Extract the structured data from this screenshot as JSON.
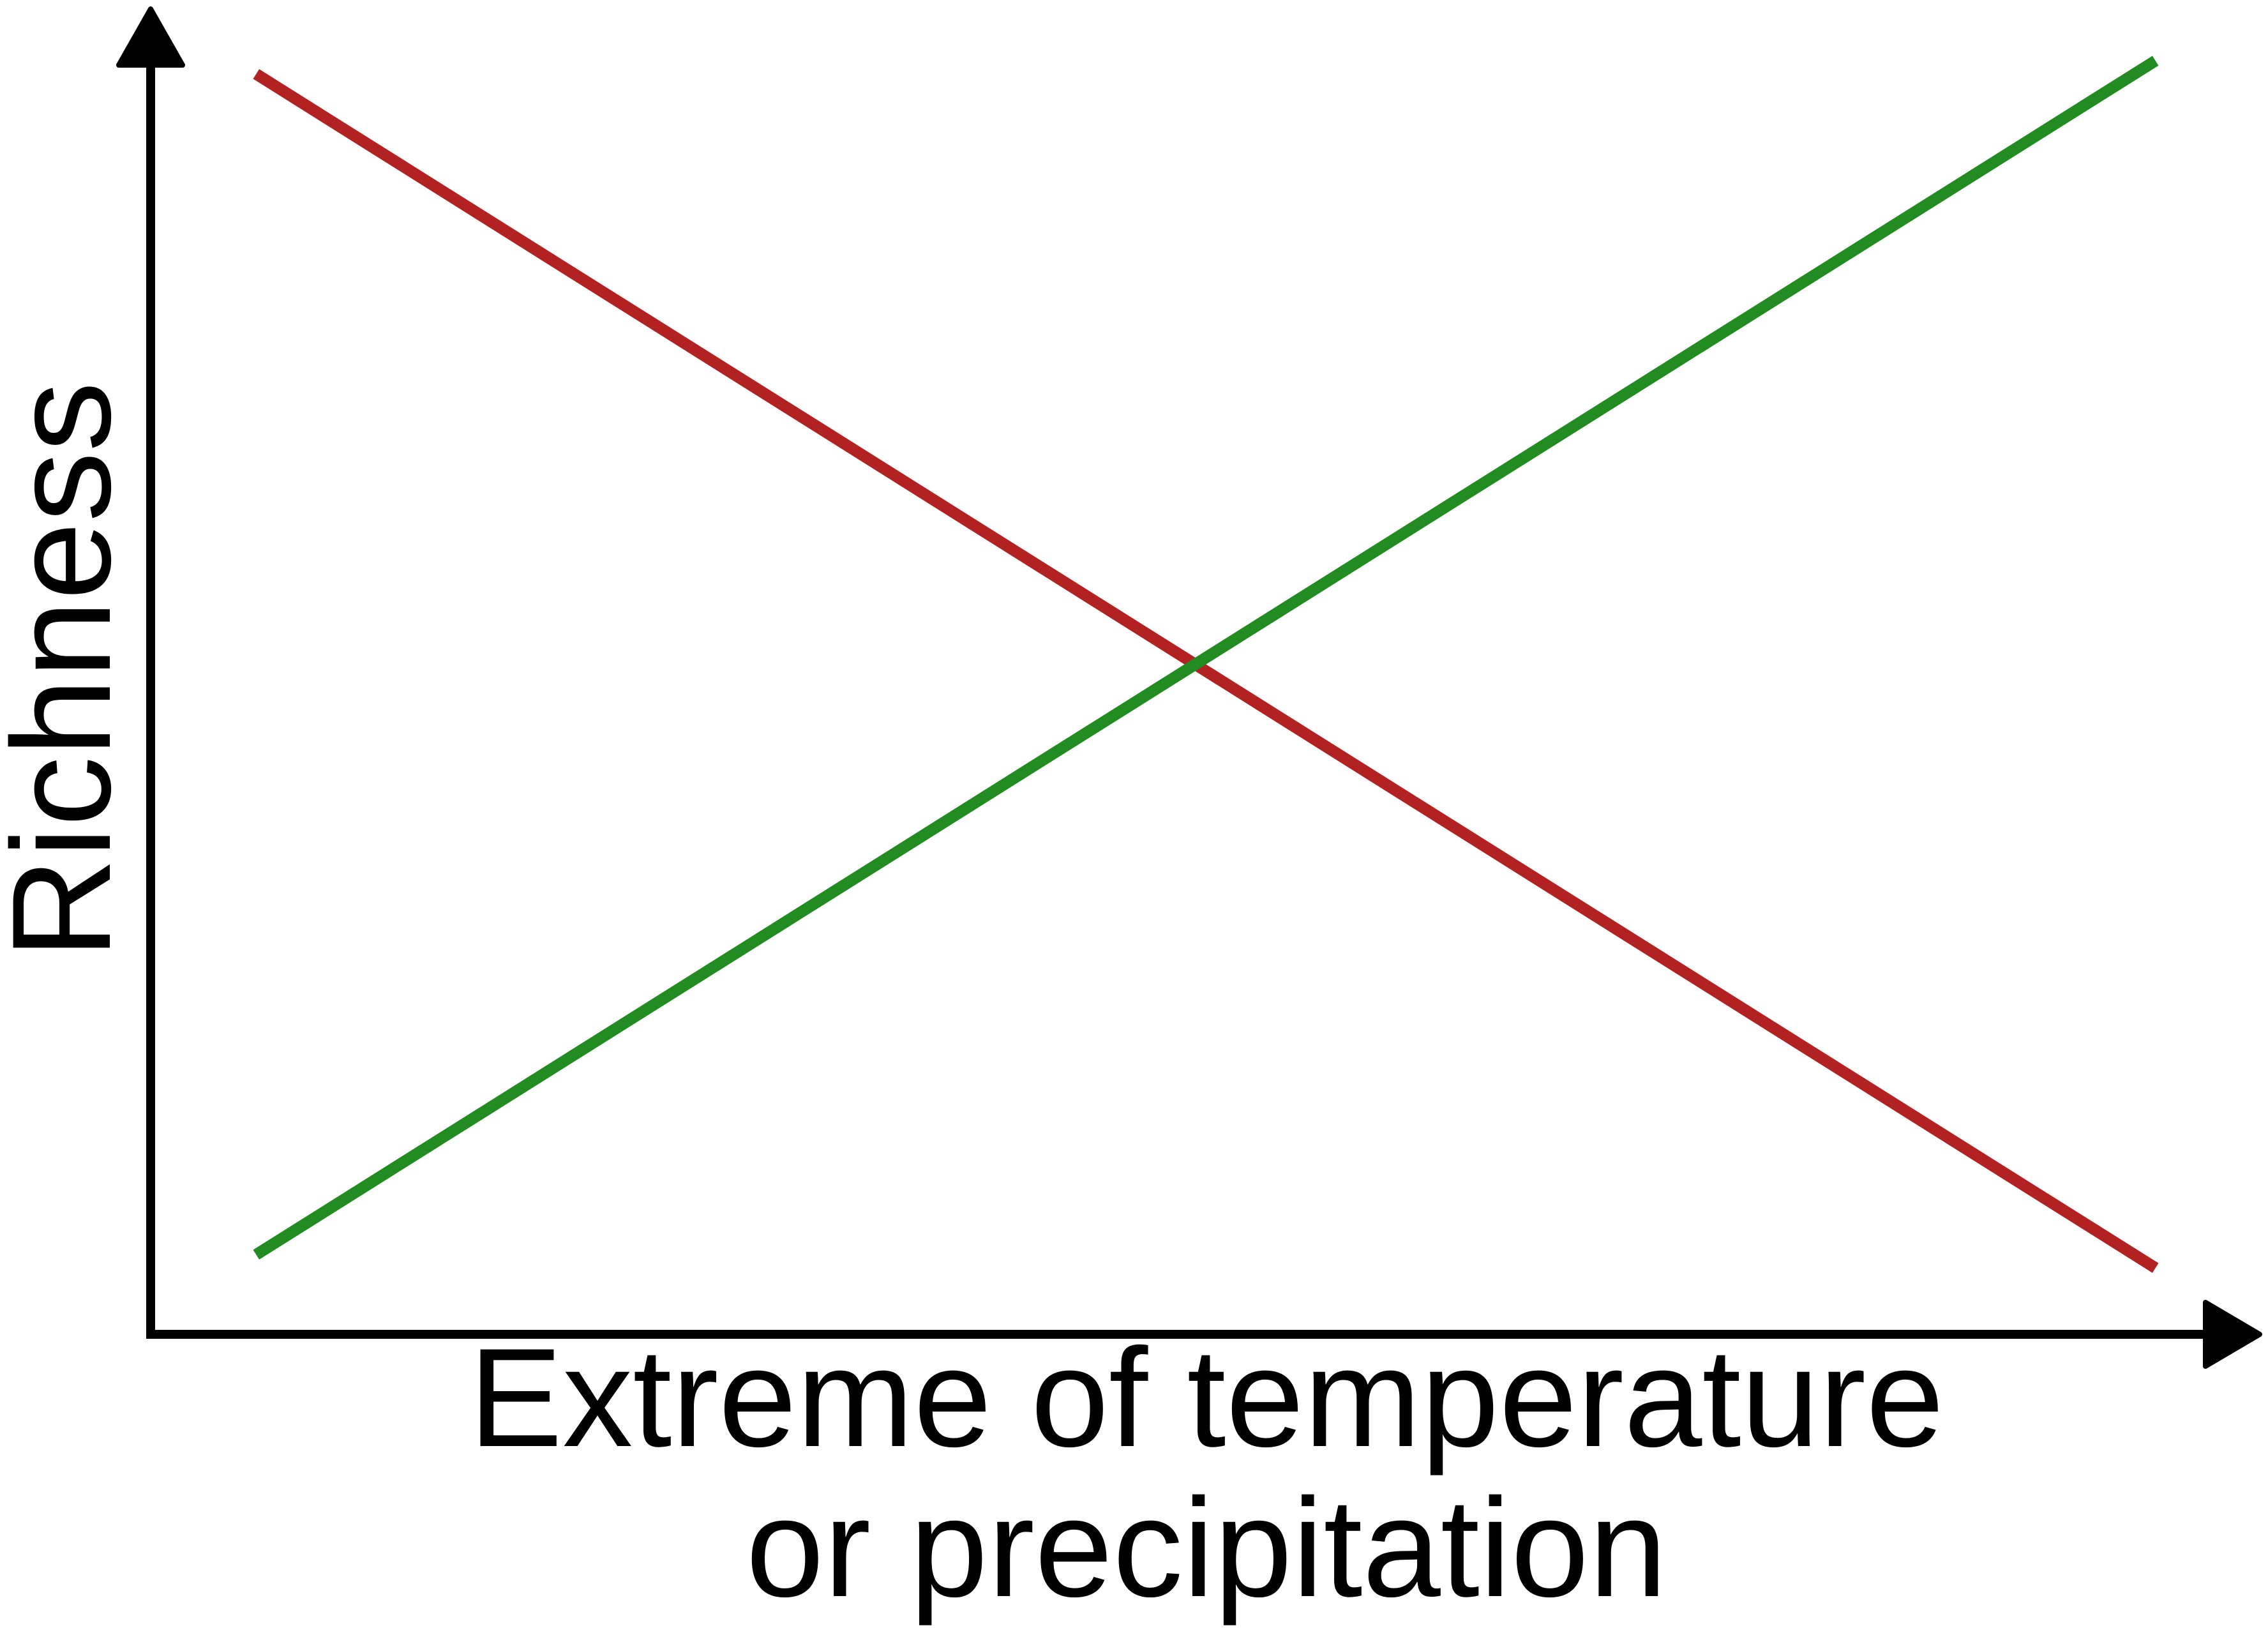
{
  "chart_data": {
    "type": "line",
    "title": "",
    "xlabel_lines": [
      "Extreme of temperature",
      "or precipitation"
    ],
    "ylabel": "Richness",
    "x_ticks": [],
    "y_ticks": [],
    "grid": false,
    "legend": "none",
    "xlim": [
      0,
      1
    ],
    "ylim": [
      0,
      1
    ],
    "series": [
      {
        "color": "#b22222",
        "x": [
          0.05,
          0.95
        ],
        "y": [
          0.95,
          0.05
        ]
      },
      {
        "color": "#228b22",
        "x": [
          0.05,
          0.95
        ],
        "y": [
          0.06,
          0.96
        ]
      }
    ]
  }
}
